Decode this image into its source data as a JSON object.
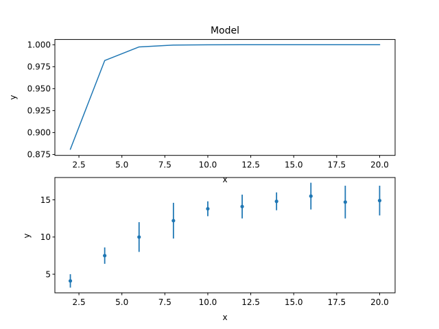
{
  "chart_data": [
    {
      "type": "line",
      "title": "Model",
      "xlabel": "x",
      "ylabel": "y",
      "xlim": [
        1.1,
        20.9
      ],
      "ylim": [
        0.874,
        1.006
      ],
      "xticks": [
        "2.5",
        "5.0",
        "7.5",
        "10.0",
        "12.5",
        "15.0",
        "17.5",
        "20.0"
      ],
      "yticks": [
        "0.875",
        "0.900",
        "0.925",
        "0.950",
        "0.975",
        "1.000"
      ],
      "color": "#1f77b4",
      "grid": false,
      "x": [
        2,
        4,
        6,
        8,
        10,
        12,
        14,
        16,
        18,
        20
      ],
      "y": [
        0.881,
        0.982,
        0.9975,
        0.9996,
        0.99995,
        1.0,
        1.0,
        1.0,
        1.0,
        1.0
      ]
    },
    {
      "type": "scatter",
      "title": "",
      "xlabel": "x",
      "ylabel": "y",
      "xlim": [
        1.1,
        20.9
      ],
      "ylim": [
        2.5,
        18.0
      ],
      "xticks": [
        "2.5",
        "5.0",
        "7.5",
        "10.0",
        "12.5",
        "15.0",
        "17.5",
        "20.0"
      ],
      "yticks": [
        "5",
        "10",
        "15"
      ],
      "color": "#1f77b4",
      "grid": false,
      "x": [
        2,
        4,
        6,
        8,
        10,
        12,
        14,
        16,
        18,
        20
      ],
      "y": [
        4.1,
        7.5,
        10.0,
        12.2,
        13.8,
        14.1,
        14.8,
        15.5,
        14.7,
        14.9
      ],
      "yerr": [
        0.9,
        1.1,
        2.0,
        2.4,
        1.0,
        1.6,
        1.2,
        1.8,
        2.2,
        2.0
      ]
    }
  ]
}
